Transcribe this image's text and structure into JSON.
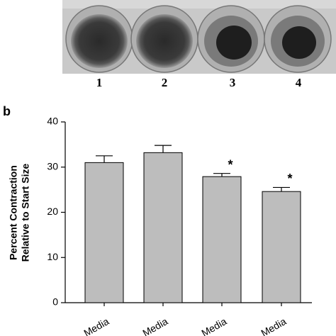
{
  "photo": {
    "labels": [
      "1",
      "2",
      "3",
      "4"
    ]
  },
  "chart_data": {
    "type": "bar",
    "panel": "b",
    "ylabel": [
      "Percent Contraction",
      "Relative to Start Size"
    ],
    "categories": [
      "Media",
      "Media",
      "Media",
      "Media"
    ],
    "values": [
      31,
      33.2,
      27.9,
      24.6
    ],
    "errors": [
      1.5,
      1.6,
      0.7,
      0.9
    ],
    "significance": [
      null,
      null,
      "*",
      "*"
    ],
    "color": "#bdbdbd",
    "ylim": [
      0,
      40
    ],
    "yticks": [
      0,
      10,
      20,
      30,
      40
    ]
  }
}
